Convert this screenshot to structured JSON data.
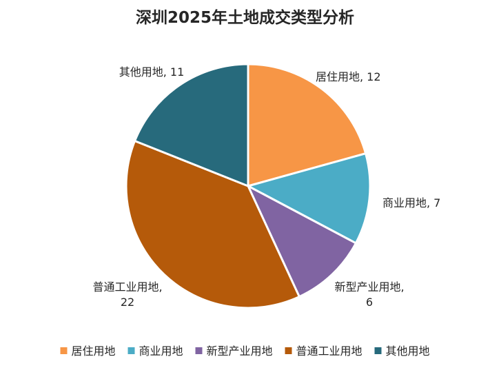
{
  "chart_data": {
    "type": "pie",
    "title": "深圳2025年土地成交类型分析",
    "categories": [
      "居住用地",
      "商业用地",
      "新型产业用地",
      "普通工业用地",
      "其他用地"
    ],
    "values": [
      12,
      7,
      6,
      22,
      11
    ],
    "colors": [
      "#F79646",
      "#4BACC6",
      "#8064A2",
      "#B55A0A",
      "#276A7C"
    ],
    "data_labels": [
      [
        "居住用地, 12"
      ],
      [
        "商业用地, 7"
      ],
      [
        "新型产业用地,",
        "6"
      ],
      [
        "普通工业用地,",
        "22"
      ],
      [
        "其他用地, 11"
      ]
    ],
    "legend_position": "bottom",
    "start_angle": "12 o'clock",
    "direction": "clockwise"
  }
}
